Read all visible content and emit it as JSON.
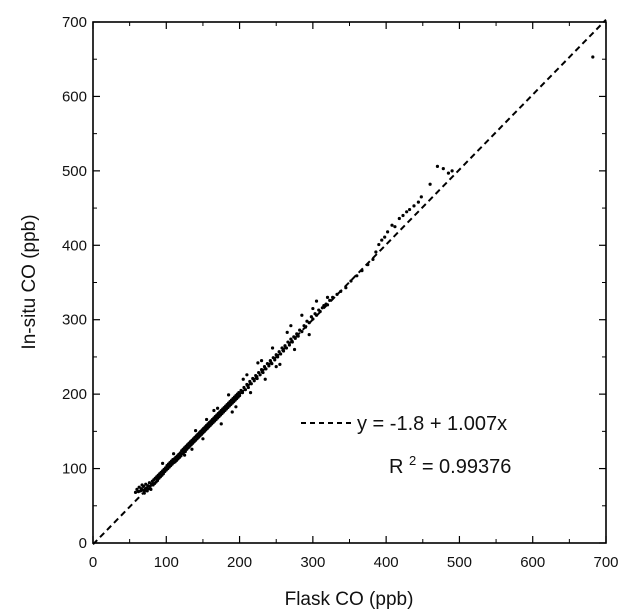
{
  "chart_data": {
    "type": "scatter",
    "title": "",
    "xlabel": "Flask CO (ppb)",
    "ylabel": "In-situ CO (ppb)",
    "xlim": [
      0,
      700
    ],
    "ylim": [
      0,
      700
    ],
    "x_ticks": [
      0,
      100,
      200,
      300,
      400,
      500,
      600,
      700
    ],
    "y_ticks": [
      0,
      100,
      200,
      300,
      400,
      500,
      600,
      700
    ],
    "grid": false,
    "legend": "none",
    "fit_line": {
      "intercept": -1.8,
      "slope": 1.007,
      "style": "dashed",
      "equation_text": "y = -1.8 + 1.007x",
      "r2_label": "R",
      "r2_superscript": "2",
      "r2_value_text": "= 0.99376"
    },
    "colors": {
      "points": "#000000",
      "axes": "#000000",
      "fit_line": "#000000"
    },
    "points": [
      [
        58,
        68
      ],
      [
        60,
        72
      ],
      [
        62,
        69
      ],
      [
        63,
        75
      ],
      [
        65,
        70
      ],
      [
        66,
        73
      ],
      [
        67,
        78
      ],
      [
        68,
        71
      ],
      [
        69,
        76
      ],
      [
        70,
        67
      ],
      [
        71,
        72
      ],
      [
        72,
        79
      ],
      [
        73,
        74
      ],
      [
        74,
        70
      ],
      [
        75,
        77
      ],
      [
        76,
        73
      ],
      [
        77,
        81
      ],
      [
        78,
        76
      ],
      [
        79,
        72
      ],
      [
        80,
        79
      ],
      [
        81,
        83
      ],
      [
        82,
        78
      ],
      [
        83,
        85
      ],
      [
        84,
        80
      ],
      [
        85,
        87
      ],
      [
        86,
        82
      ],
      [
        87,
        89
      ],
      [
        88,
        84
      ],
      [
        89,
        91
      ],
      [
        90,
        87
      ],
      [
        91,
        93
      ],
      [
        92,
        89
      ],
      [
        93,
        95
      ],
      [
        94,
        91
      ],
      [
        95,
        97
      ],
      [
        96,
        93
      ],
      [
        97,
        99
      ],
      [
        98,
        96
      ],
      [
        99,
        101
      ],
      [
        100,
        98
      ],
      [
        101,
        104
      ],
      [
        102,
        100
      ],
      [
        103,
        106
      ],
      [
        104,
        102
      ],
      [
        105,
        108
      ],
      [
        106,
        104
      ],
      [
        107,
        110
      ],
      [
        108,
        106
      ],
      [
        109,
        112
      ],
      [
        110,
        108
      ],
      [
        111,
        113
      ],
      [
        112,
        109
      ],
      [
        113,
        115
      ],
      [
        114,
        111
      ],
      [
        115,
        117
      ],
      [
        116,
        113
      ],
      [
        117,
        119
      ],
      [
        118,
        115
      ],
      [
        119,
        121
      ],
      [
        120,
        117
      ],
      [
        121,
        124
      ],
      [
        122,
        120
      ],
      [
        123,
        126
      ],
      [
        124,
        122
      ],
      [
        125,
        128
      ],
      [
        126,
        123
      ],
      [
        127,
        130
      ],
      [
        128,
        126
      ],
      [
        129,
        132
      ],
      [
        130,
        128
      ],
      [
        131,
        134
      ],
      [
        132,
        130
      ],
      [
        133,
        136
      ],
      [
        134,
        132
      ],
      [
        135,
        138
      ],
      [
        136,
        134
      ],
      [
        137,
        140
      ],
      [
        138,
        136
      ],
      [
        139,
        142
      ],
      [
        140,
        138
      ],
      [
        141,
        144
      ],
      [
        142,
        140
      ],
      [
        143,
        146
      ],
      [
        144,
        142
      ],
      [
        145,
        148
      ],
      [
        146,
        144
      ],
      [
        147,
        150
      ],
      [
        148,
        146
      ],
      [
        149,
        152
      ],
      [
        150,
        148
      ],
      [
        151,
        154
      ],
      [
        152,
        150
      ],
      [
        153,
        156
      ],
      [
        154,
        152
      ],
      [
        155,
        158
      ],
      [
        156,
        154
      ],
      [
        157,
        160
      ],
      [
        158,
        156
      ],
      [
        159,
        162
      ],
      [
        160,
        158
      ],
      [
        161,
        164
      ],
      [
        162,
        160
      ],
      [
        163,
        166
      ],
      [
        164,
        162
      ],
      [
        165,
        168
      ],
      [
        166,
        164
      ],
      [
        167,
        170
      ],
      [
        168,
        166
      ],
      [
        169,
        172
      ],
      [
        170,
        168
      ],
      [
        171,
        174
      ],
      [
        172,
        170
      ],
      [
        173,
        176
      ],
      [
        174,
        172
      ],
      [
        175,
        178
      ],
      [
        176,
        174
      ],
      [
        177,
        180
      ],
      [
        178,
        176
      ],
      [
        179,
        182
      ],
      [
        180,
        178
      ],
      [
        181,
        184
      ],
      [
        182,
        180
      ],
      [
        183,
        186
      ],
      [
        184,
        182
      ],
      [
        185,
        188
      ],
      [
        186,
        184
      ],
      [
        187,
        190
      ],
      [
        188,
        186
      ],
      [
        189,
        192
      ],
      [
        190,
        188
      ],
      [
        191,
        194
      ],
      [
        192,
        190
      ],
      [
        193,
        196
      ],
      [
        194,
        192
      ],
      [
        195,
        198
      ],
      [
        196,
        194
      ],
      [
        197,
        200
      ],
      [
        198,
        196
      ],
      [
        199,
        202
      ],
      [
        200,
        198
      ],
      [
        202,
        205
      ],
      [
        204,
        202
      ],
      [
        206,
        209
      ],
      [
        208,
        206
      ],
      [
        210,
        213
      ],
      [
        212,
        209
      ],
      [
        214,
        217
      ],
      [
        216,
        214
      ],
      [
        218,
        221
      ],
      [
        220,
        218
      ],
      [
        222,
        225
      ],
      [
        224,
        221
      ],
      [
        226,
        229
      ],
      [
        228,
        226
      ],
      [
        230,
        233
      ],
      [
        232,
        229
      ],
      [
        234,
        237
      ],
      [
        236,
        234
      ],
      [
        238,
        241
      ],
      [
        240,
        238
      ],
      [
        242,
        245
      ],
      [
        244,
        241
      ],
      [
        246,
        249
      ],
      [
        248,
        246
      ],
      [
        250,
        253
      ],
      [
        252,
        250
      ],
      [
        254,
        257
      ],
      [
        256,
        254
      ],
      [
        258,
        262
      ],
      [
        260,
        258
      ],
      [
        262,
        265
      ],
      [
        264,
        262
      ],
      [
        266,
        270
      ],
      [
        268,
        266
      ],
      [
        270,
        274
      ],
      [
        272,
        270
      ],
      [
        274,
        277
      ],
      [
        276,
        275
      ],
      [
        278,
        281
      ],
      [
        280,
        278
      ],
      [
        282,
        286
      ],
      [
        285,
        284
      ],
      [
        288,
        292
      ],
      [
        290,
        290
      ],
      [
        292,
        298
      ],
      [
        295,
        296
      ],
      [
        298,
        304
      ],
      [
        300,
        301
      ],
      [
        303,
        308
      ],
      [
        305,
        306
      ],
      [
        308,
        313
      ],
      [
        310,
        311
      ],
      [
        313,
        316
      ],
      [
        315,
        319
      ],
      [
        318,
        321
      ],
      [
        320,
        320
      ],
      [
        323,
        326
      ],
      [
        327,
        330
      ],
      [
        333,
        334
      ],
      [
        338,
        338
      ],
      [
        345,
        343
      ],
      [
        352,
        352
      ],
      [
        360,
        359
      ],
      [
        367,
        366
      ],
      [
        375,
        374
      ],
      [
        382,
        381
      ],
      [
        386,
        391
      ],
      [
        390,
        401
      ],
      [
        394,
        407
      ],
      [
        398,
        411
      ],
      [
        402,
        418
      ],
      [
        408,
        427
      ],
      [
        412,
        425
      ],
      [
        418,
        436
      ],
      [
        423,
        440
      ],
      [
        428,
        445
      ],
      [
        432,
        448
      ],
      [
        438,
        453
      ],
      [
        444,
        458
      ],
      [
        448,
        465
      ],
      [
        460,
        482
      ],
      [
        470,
        506
      ],
      [
        478,
        503
      ],
      [
        485,
        497
      ],
      [
        490,
        500
      ],
      [
        682,
        653
      ],
      [
        95,
        107
      ],
      [
        110,
        120
      ],
      [
        125,
        118
      ],
      [
        140,
        151
      ],
      [
        150,
        140
      ],
      [
        165,
        178
      ],
      [
        175,
        160
      ],
      [
        185,
        199
      ],
      [
        195,
        183
      ],
      [
        205,
        220
      ],
      [
        215,
        202
      ],
      [
        225,
        242
      ],
      [
        235,
        220
      ],
      [
        245,
        262
      ],
      [
        255,
        240
      ],
      [
        265,
        283
      ],
      [
        275,
        260
      ],
      [
        285,
        306
      ],
      [
        295,
        280
      ],
      [
        305,
        325
      ],
      [
        135,
        126
      ],
      [
        155,
        166
      ],
      [
        170,
        181
      ],
      [
        190,
        176
      ],
      [
        210,
        226
      ],
      [
        230,
        245
      ],
      [
        250,
        237
      ],
      [
        270,
        292
      ],
      [
        300,
        315
      ],
      [
        320,
        330
      ]
    ]
  }
}
